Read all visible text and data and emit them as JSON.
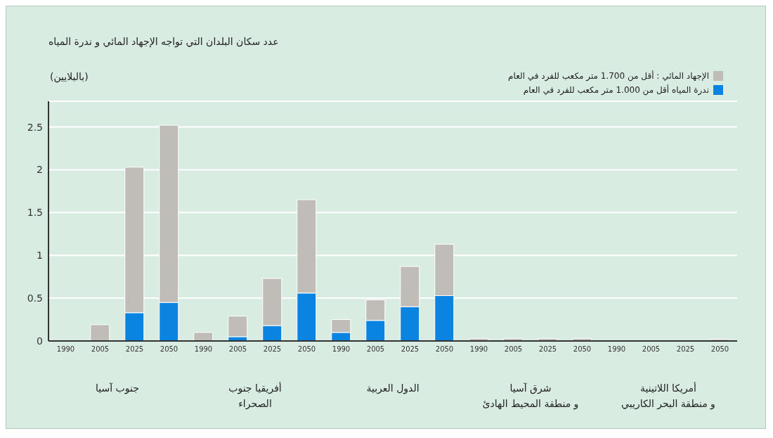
{
  "chart_data": {
    "type": "bar",
    "title": "عدد سكان البلدان التي تواجه الإجهاد المائي و ندرة المياه",
    "ylabel": "(بالبلايين)",
    "categories": [
      "1990",
      "2005",
      "2025",
      "2050",
      "1990",
      "2005",
      "2025",
      "2050",
      "1990",
      "2005",
      "2025",
      "2050",
      "1990",
      "2005",
      "2025",
      "2050",
      "1990",
      "2005",
      "2025",
      "2050"
    ],
    "stacked": true,
    "series": [
      {
        "name": "ندرة المياه  أقل من  1.000  متر مكعب للفرد في العام",
        "color": "#0a84e0",
        "values": [
          0,
          0,
          0.33,
          0.45,
          0,
          0.05,
          0.18,
          0.56,
          0.1,
          0.24,
          0.4,
          0.53,
          0,
          0,
          0,
          0,
          0,
          0,
          0,
          0
        ]
      },
      {
        "name": "الإجهاد المائي : أقل من 1.700  متر مكعب للفرد في العام",
        "color": "#c0bdb8",
        "values": [
          0,
          0.19,
          1.7,
          2.07,
          0.1,
          0.24,
          0.55,
          1.09,
          0.15,
          0.24,
          0.47,
          0.6,
          0.03,
          0.03,
          0.03,
          0.03,
          0,
          0,
          0,
          0.02
        ]
      }
    ],
    "annotations": [
      "جنوب آسيا",
      "أفريقيا جنوب\nالصحراء",
      "الدول العربية",
      "شرق آسيا\nو منطقة المحيط الهادئ",
      "أمريكا اللاتينية\nو منطقة البحر الكاريبي"
    ],
    "ylim": [
      0,
      2.8
    ],
    "yticks": [
      0,
      0.5,
      1,
      1.5,
      2,
      2.5
    ],
    "grid": "y",
    "legend": "top right"
  }
}
